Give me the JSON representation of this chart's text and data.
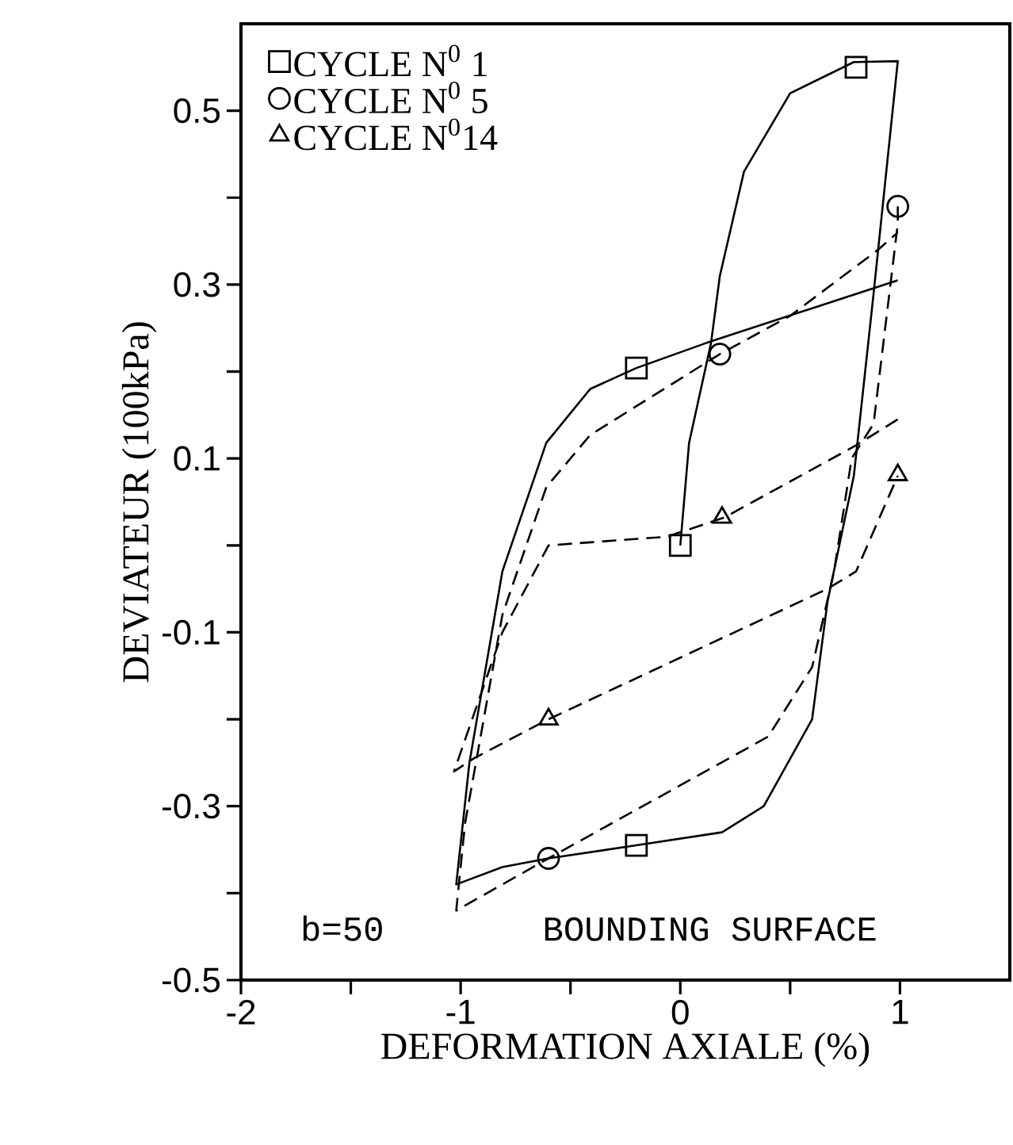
{
  "chart_data": {
    "type": "line",
    "xlabel": "DEFORMATION AXIALE (%)",
    "ylabel": "DEVIATEUR (100kPa)",
    "xlim": [
      -2,
      1.5
    ],
    "ylim": [
      -0.5,
      0.6
    ],
    "xticks": [
      -2,
      {
        "value": -1.5,
        "label": null
      },
      -1,
      {
        "value": -0.5,
        "label": null
      },
      0,
      {
        "value": 0.5,
        "label": null
      },
      1
    ],
    "yticks": [
      -0.5,
      {
        "value": -0.4,
        "label": null
      },
      -0.3,
      {
        "value": -0.2,
        "label": null
      },
      -0.1,
      {
        "value": 0,
        "label": null
      },
      0.1,
      {
        "value": 0.2,
        "label": null
      },
      0.3,
      {
        "value": 0.4,
        "label": null
      },
      0.5
    ],
    "legend": "top left",
    "annotations": [
      "b=50",
      "BOUNDING SURFACE"
    ],
    "series": [
      {
        "line_style": "solid",
        "color": "#000000",
        "x": [
          0,
          0.04,
          0.14,
          0.18,
          0.29,
          0.5,
          0.79,
          0.8,
          0.99,
          0.88,
          0.79,
          0.67,
          0.6,
          0.38,
          0.19,
          -0.2,
          -0.6,
          -0.81,
          -1.02,
          -0.96,
          -0.81,
          -0.61,
          -0.41,
          -0.2,
          0.12,
          0.99
        ],
        "values": [
          0,
          0.118,
          0.233,
          0.31,
          0.43,
          0.52,
          0.556,
          0.556,
          0.557,
          0.29,
          0.08,
          -0.065,
          -0.2,
          -0.3,
          -0.33,
          -0.345,
          -0.36,
          -0.37,
          -0.39,
          -0.25,
          -0.03,
          0.118,
          0.18,
          0.204,
          0.233,
          0.305
        ]
      },
      {
        "line_style": "dashed",
        "color": "#000000",
        "x": [
          0.99,
          0.99,
          0.88,
          0.78,
          0.7,
          0.6,
          0.4,
          -0.6,
          -1.02,
          -0.98,
          -0.81,
          -0.61,
          -0.41,
          0.18,
          0.5,
          0.9,
          0.99
        ],
        "values": [
          0.39,
          0.37,
          0.14,
          0.1,
          -0.03,
          -0.14,
          -0.22,
          -0.36,
          -0.42,
          -0.32,
          -0.08,
          0.067,
          0.127,
          0.22,
          0.264,
          0.34,
          0.36
        ]
      },
      {
        "line_style": "dashed",
        "color": "#000000",
        "x": [
          0.99,
          0.8,
          0.2,
          -0.06,
          -0.6,
          -0.81,
          -1.03,
          -0.94,
          -0.6,
          0.67,
          0.8,
          0.99
        ],
        "values": [
          0.145,
          0.115,
          0.032,
          0.01,
          0,
          -0.1,
          -0.26,
          -0.245,
          -0.2,
          -0.05,
          -0.03,
          0.08
        ]
      },
      {
        "name": "CYCLE N$^{0}$ 1",
        "type": "scatter",
        "marker": "square",
        "color": "#000000",
        "x": [
          0,
          0.8,
          -0.2,
          -0.2
        ],
        "values": [
          0,
          0.55,
          -0.345,
          0.204
        ]
      },
      {
        "name": "CYCLE N$^{0}$ 5",
        "type": "scatter",
        "marker": "circle",
        "color": "#000000",
        "x": [
          0.99,
          0.18,
          -0.6
        ],
        "values": [
          0.39,
          0.22,
          -0.36
        ]
      },
      {
        "name": "CYCLE N$^{0}$14",
        "type": "scatter",
        "marker": "triangle",
        "color": "#000000",
        "x": [
          0.19,
          0.99,
          -0.6
        ],
        "values": [
          0.032,
          0.081,
          -0.2
        ]
      }
    ]
  }
}
